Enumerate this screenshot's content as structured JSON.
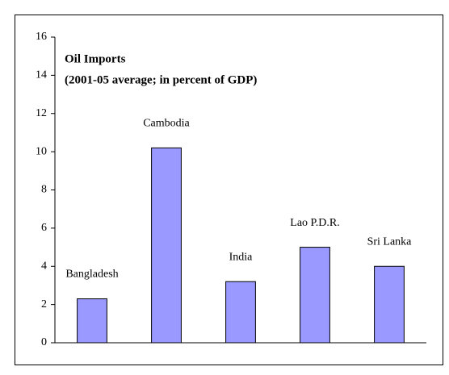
{
  "chart_data": {
    "type": "bar",
    "title": "Oil Imports",
    "subtitle": "(2001-05 average; in percent of GDP)",
    "categories": [
      "Bangladesh",
      "Cambodia",
      "India",
      "Lao P.D.R.",
      "Sri Lanka"
    ],
    "values": [
      2.3,
      10.2,
      3.2,
      5.0,
      4.0
    ],
    "color": "#9999ff",
    "ylim": [
      0,
      16
    ],
    "yticks": [
      0,
      2,
      4,
      6,
      8,
      10,
      12,
      14,
      16
    ],
    "grid": false
  }
}
